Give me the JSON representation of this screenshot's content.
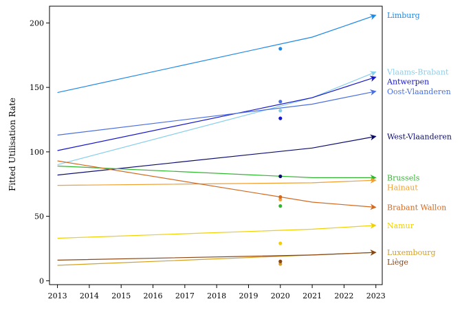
{
  "chart_data": {
    "type": "line",
    "title": "",
    "xlabel": "",
    "ylabel": "Fitted Utilisation Rate",
    "x_ticks": [
      2013,
      2014,
      2015,
      2016,
      2017,
      2018,
      2019,
      2020,
      2021,
      2022,
      2023
    ],
    "y_ticks": [
      0,
      50,
      100,
      150,
      200
    ],
    "xlim": [
      2012.75,
      2023.2
    ],
    "ylim": [
      -3,
      213
    ],
    "grid": false,
    "legend": "labels at line ends (right)",
    "series": [
      {
        "name": "Limburg",
        "color": "#1E88E5",
        "x": [
          2013,
          2021,
          2023
        ],
        "y": [
          146,
          189,
          206
        ],
        "point_2020": 180
      },
      {
        "name": "Vlaams-Brabant",
        "color": "#87CEEB",
        "x": [
          2013,
          2021,
          2023
        ],
        "y": [
          90,
          142,
          162
        ],
        "point_2020": 132
      },
      {
        "name": "Antwerpen",
        "color": "#1515CC",
        "x": [
          2013,
          2021,
          2023
        ],
        "y": [
          101,
          142,
          158
        ],
        "point_2020": 126
      },
      {
        "name": "Oost-Vlaanderen",
        "color": "#4A6FE0",
        "x": [
          2013,
          2021,
          2023
        ],
        "y": [
          113,
          137,
          147
        ],
        "point_2020": 139
      },
      {
        "name": "West-Vlaanderen",
        "color": "#0A0A6E",
        "x": [
          2013,
          2021,
          2023
        ],
        "y": [
          82,
          103,
          112
        ],
        "point_2020": 81
      },
      {
        "name": "Brussels",
        "color": "#2DB82D",
        "x": [
          2013,
          2021,
          2023
        ],
        "y": [
          89,
          80,
          80
        ],
        "point_2020": 58
      },
      {
        "name": "Hainaut",
        "color": "#F0A030",
        "x": [
          2013,
          2021,
          2023
        ],
        "y": [
          74,
          76,
          78
        ],
        "point_2020": 63
      },
      {
        "name": "Brabant Wallon",
        "color": "#D2691E",
        "x": [
          2013,
          2021,
          2023
        ],
        "y": [
          93,
          61,
          57
        ],
        "point_2020": 65
      },
      {
        "name": "Namur",
        "color": "#F0D000",
        "x": [
          2013,
          2021,
          2023
        ],
        "y": [
          33,
          40,
          43
        ],
        "point_2020": 29
      },
      {
        "name": "Luxembourg",
        "color": "#D4A020",
        "x": [
          2013,
          2021,
          2023
        ],
        "y": [
          12,
          20,
          22
        ],
        "point_2020": 13
      },
      {
        "name": "Liège",
        "color": "#8B4513",
        "x": [
          2013,
          2021,
          2023
        ],
        "y": [
          16,
          20,
          22
        ],
        "point_2020": 15
      }
    ]
  }
}
